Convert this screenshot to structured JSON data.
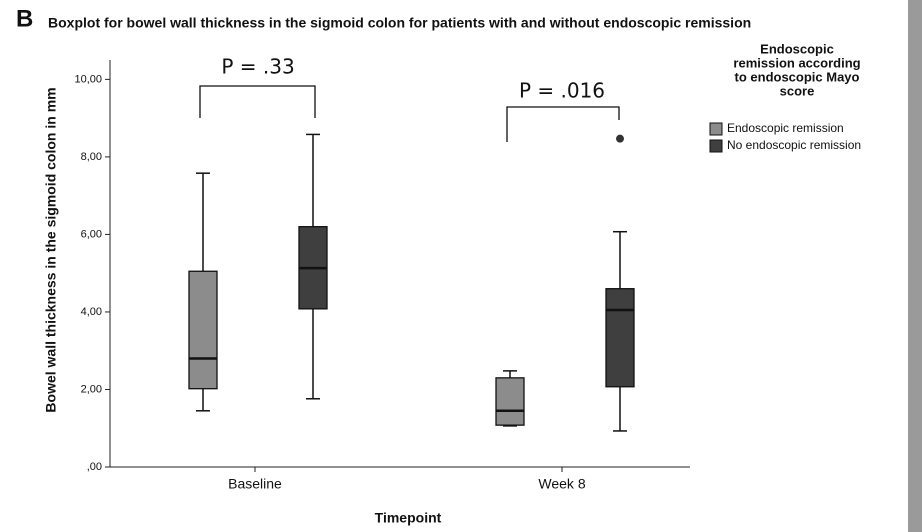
{
  "chart_data": {
    "type": "boxplot",
    "panel": "B",
    "title": "Boxplot for bowel wall thickness in the sigmoid colon for patients with and without endoscopic remission",
    "x_label": "Timepoint",
    "y_label": "Bowel wall thickness in the sigmoid colon in mm",
    "categories": [
      "Baseline",
      "Week 8"
    ],
    "ylim": [
      0,
      10.5
    ],
    "yticks": [
      {
        "value": 0,
        "label": ",00"
      },
      {
        "value": 2,
        "label": "2,00"
      },
      {
        "value": 4,
        "label": "4,00"
      },
      {
        "value": 6,
        "label": "6,00"
      },
      {
        "value": 8,
        "label": "8,00"
      },
      {
        "value": 10,
        "label": "10,00"
      }
    ],
    "legend_title": [
      "Endoscopic",
      "remission according",
      "to endoscopic Mayo",
      "score"
    ],
    "series": [
      {
        "name": "Endoscopic remission",
        "color": "#8c8c8c",
        "min": [
          1.45,
          1.06
        ],
        "q1": [
          2.02,
          1.08
        ],
        "median": [
          2.8,
          1.45
        ],
        "q3": [
          5.05,
          2.3
        ],
        "max": [
          7.58,
          2.48
        ],
        "outliers": [
          [],
          []
        ]
      },
      {
        "name": "No endoscopic remission",
        "color": "#3f3f3f",
        "min": [
          1.76,
          0.93
        ],
        "q1": [
          4.08,
          2.07
        ],
        "median": [
          5.13,
          4.05
        ],
        "q3": [
          6.2,
          4.6
        ],
        "max": [
          8.58,
          6.07
        ],
        "outliers": [
          [],
          [
            8.47
          ]
        ]
      }
    ],
    "annotations": [
      "P = .33",
      "P = .016"
    ]
  }
}
